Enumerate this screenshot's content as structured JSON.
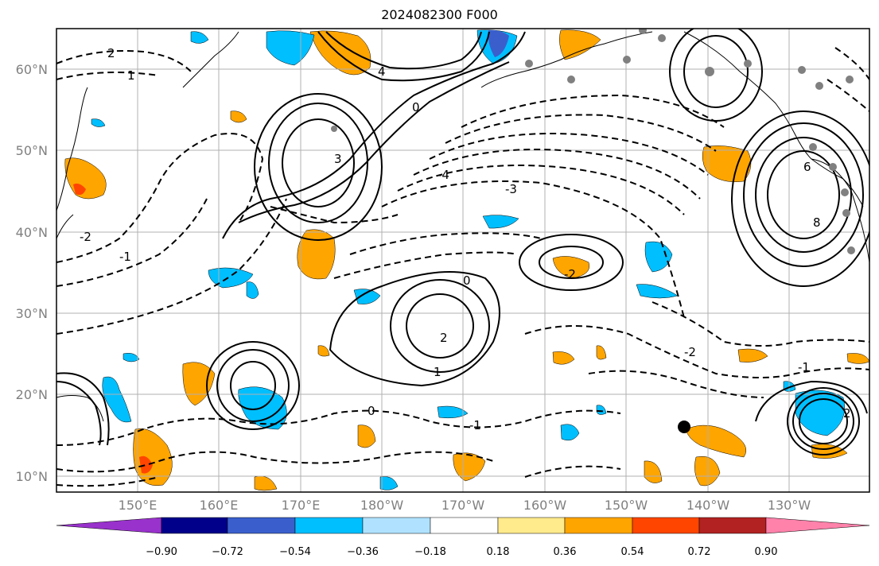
{
  "title": "2024082300 F000",
  "latitude_labels": [
    "60°N",
    "50°N",
    "40°N",
    "30°N",
    "20°N",
    "10°N"
  ],
  "longitude_labels": [
    "150°E",
    "160°E",
    "170°E",
    "180°W",
    "170°W",
    "160°W",
    "150°W",
    "140°W",
    "130°W"
  ],
  "colorbar": {
    "tick_labels": [
      "−0.90",
      "−0.72",
      "−0.54",
      "−0.36",
      "−0.18",
      "0.18",
      "0.36",
      "0.54",
      "0.72",
      "0.90"
    ],
    "colors": [
      "#9932cc",
      "#00008b",
      "#3a5fcd",
      "#00bfff",
      "#b0e2ff",
      "#ffffff",
      "#ffeb8c",
      "#ffa500",
      "#ff4500",
      "#b22222",
      "#ff82ab"
    ]
  },
  "contour_labels": [
    "2",
    "1",
    "0",
    "-1",
    "-2",
    "-3",
    "-4",
    "3",
    "4",
    "6",
    "8",
    "0",
    "-2",
    "1",
    "2",
    "-1",
    "-2",
    "2",
    "0",
    "-1"
  ],
  "markers": {
    "gray_station_color": "#808080",
    "storm_center_color": "#000000"
  }
}
